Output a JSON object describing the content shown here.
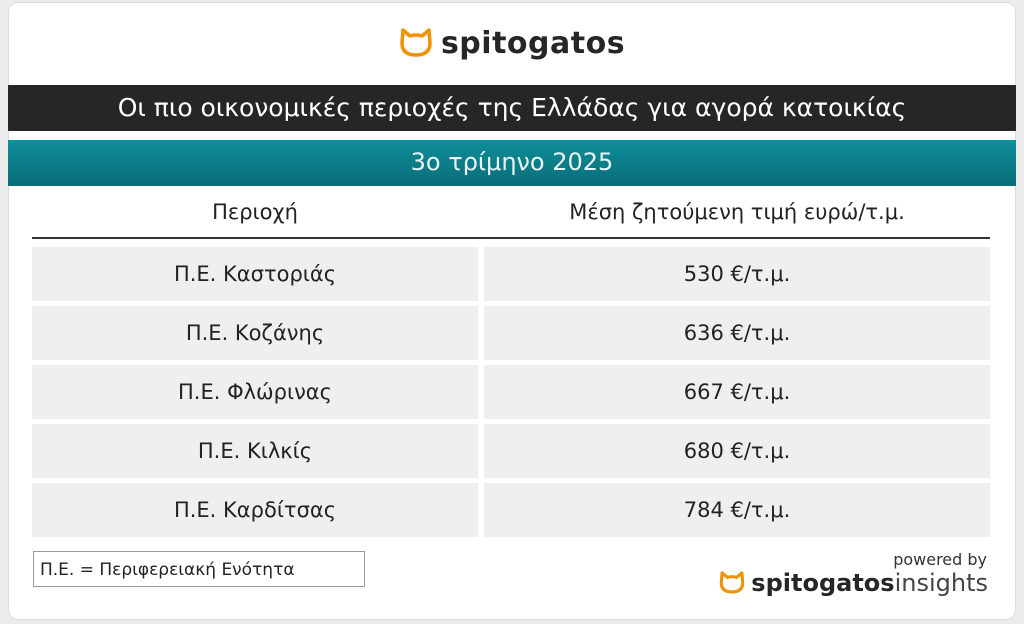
{
  "header": {
    "logo": "spitogatos",
    "title": "Οι πιο οικονομικές περιοχές της Ελλάδας για αγορά κατοικίας",
    "subtitle": "3ο τρίμηνο 2025"
  },
  "table": {
    "columns": [
      "Περιοχή",
      "Μέση ζητούμενη τιμή ευρώ/τ.μ."
    ],
    "rows": [
      [
        "Π.Ε. Καστοριάς",
        "530 €/τ.μ."
      ],
      [
        "Π.Ε. Κοζάνης",
        "636 €/τ.μ."
      ],
      [
        "Π.Ε. Φλώρινας",
        "667 €/τ.μ."
      ],
      [
        "Π.Ε. Κιλκίς",
        "680 €/τ.μ."
      ],
      [
        "Π.Ε. Καρδίτσας",
        "784 €/τ.μ."
      ]
    ]
  },
  "footer": {
    "note": "Π.Ε. = Περιφερειακή Ενότητα",
    "powered_by": "powered by",
    "brand": "spitogatos",
    "brand_suffix": "insights"
  }
}
